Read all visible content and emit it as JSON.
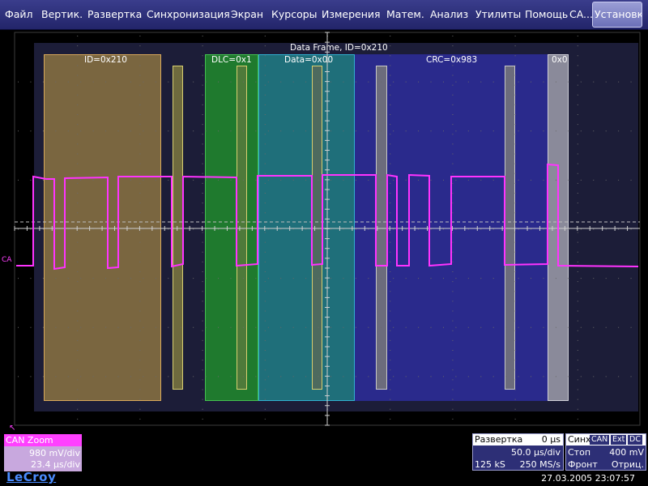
{
  "menu": {
    "items": [
      "Файл",
      "Вертик.",
      "Развертка",
      "Синхронизация",
      "Экран",
      "Курсоры",
      "Измерения",
      "Матем.",
      "Анализ",
      "Утилиты",
      "Помощь",
      "CA..."
    ],
    "active": "Установки"
  },
  "decode": {
    "frame_title": "Data Frame, ID=0x210",
    "id_label": "ID=0x210",
    "dlc_label": "DLC=0x1",
    "data_label": "Data=0x00",
    "crc_label": "CRC=0x983",
    "end_label": "0x0"
  },
  "colors": {
    "trace": "#ff33ff",
    "id": "#7a6640",
    "dlc": "#1f7a2e",
    "data": "#1f6f7a",
    "crc": "#2a2a8c",
    "end": "#c8c8c8"
  },
  "channel": {
    "name": "CAN Zoom",
    "vdiv": "980 mV/div",
    "tdiv": "23.4 µs/div",
    "marker": "CA"
  },
  "timebase": {
    "label": "Развертка",
    "delay": "0 µs",
    "tdiv": "50.0 µs/div",
    "samples": "125 kS",
    "rate": "250 MS/s"
  },
  "trigger": {
    "label": "Синх",
    "source": "CAN",
    "coupling": "Ext",
    "mode_dc": "DC",
    "state": "Стоп",
    "level": "400 mV",
    "type": "Фронт",
    "slope": "Отриц."
  },
  "brand": "LeCroy",
  "timestamp": "27.03.2005 23:07:57"
}
